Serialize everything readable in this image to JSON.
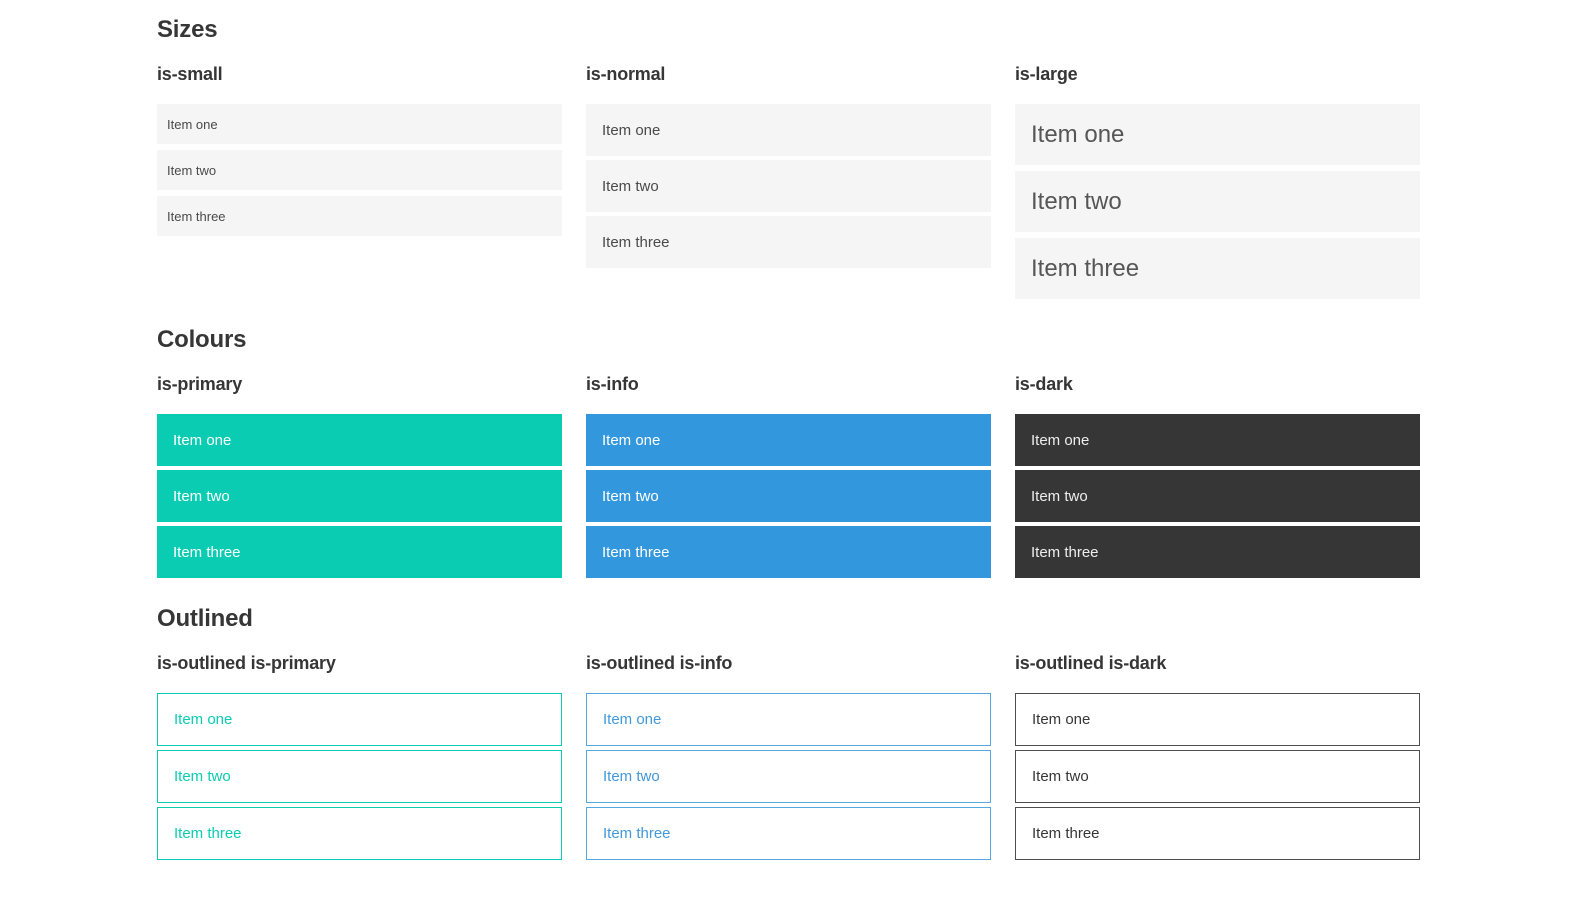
{
  "colors": {
    "primary": "#0accb2",
    "info": "#3297dc",
    "dark": "#363636",
    "item_bg": "#f5f5f5",
    "text": "#4a4a4a",
    "heading": "#363636",
    "white": "#ffffff"
  },
  "sections": [
    {
      "title": "Sizes",
      "groups": [
        {
          "label": "is-small",
          "variant": "small",
          "items": [
            "Item one",
            "Item two",
            "Item three"
          ]
        },
        {
          "label": "is-normal",
          "variant": "normal",
          "items": [
            "Item one",
            "Item two",
            "Item three"
          ]
        },
        {
          "label": "is-large",
          "variant": "large",
          "items": [
            "Item one",
            "Item two",
            "Item three"
          ]
        }
      ]
    },
    {
      "title": "Colours",
      "groups": [
        {
          "label": "is-primary",
          "variant": "primary",
          "items": [
            "Item one",
            "Item two",
            "Item three"
          ]
        },
        {
          "label": "is-info",
          "variant": "info",
          "items": [
            "Item one",
            "Item two",
            "Item three"
          ]
        },
        {
          "label": "is-dark",
          "variant": "dark",
          "items": [
            "Item one",
            "Item two",
            "Item three"
          ]
        }
      ]
    },
    {
      "title": "Outlined",
      "groups": [
        {
          "label": "is-outlined is-primary",
          "variant": "outlined-primary",
          "items": [
            "Item one",
            "Item two",
            "Item three"
          ]
        },
        {
          "label": "is-outlined is-info",
          "variant": "outlined-info",
          "items": [
            "Item one",
            "Item two",
            "Item three"
          ]
        },
        {
          "label": "is-outlined is-dark",
          "variant": "outlined-dark",
          "items": [
            "Item one",
            "Item two",
            "Item three"
          ]
        }
      ]
    }
  ]
}
